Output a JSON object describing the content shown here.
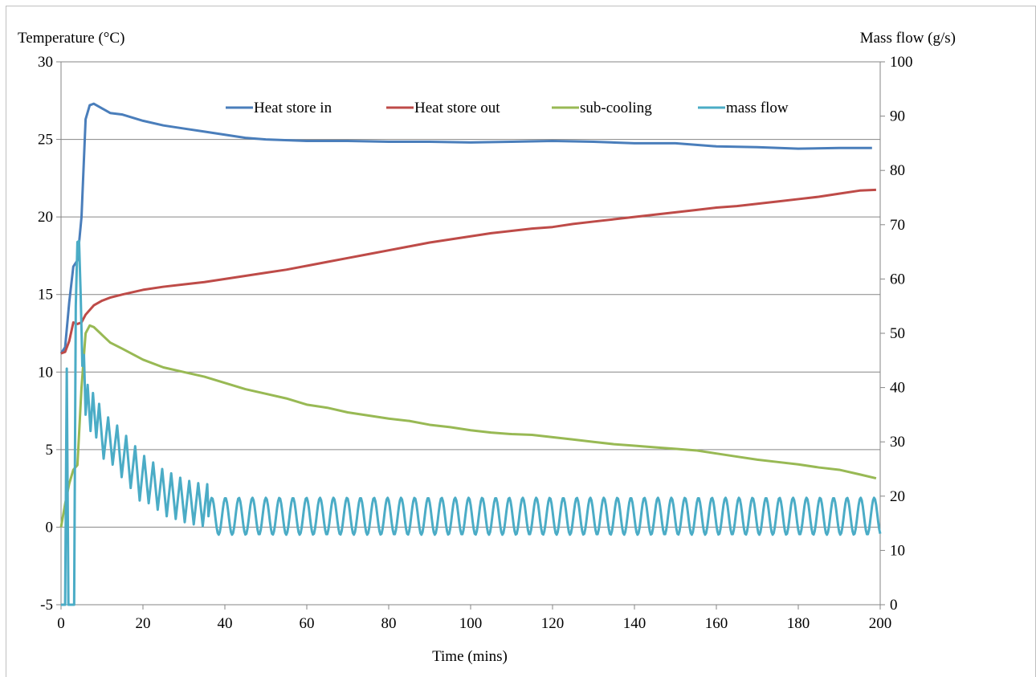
{
  "chart_data": {
    "type": "line",
    "xlabel": "Time (mins)",
    "ylabel_left": "Temperature (°C)",
    "ylabel_right": "Mass flow (g/s)",
    "xlim": [
      0,
      200
    ],
    "ylim_left": [
      -5,
      30
    ],
    "ylim_right": [
      0,
      100
    ],
    "x_ticks": [
      "0",
      "20",
      "40",
      "60",
      "80",
      "100",
      "120",
      "140",
      "160",
      "180",
      "200"
    ],
    "y_left_ticks": [
      "-5",
      "0",
      "5",
      "10",
      "15",
      "20",
      "25",
      "30"
    ],
    "y_right_ticks": [
      "0",
      "10",
      "20",
      "30",
      "40",
      "50",
      "60",
      "70",
      "80",
      "90",
      "100"
    ],
    "grid": "horizontal",
    "legend_position": "top-right",
    "series": [
      {
        "name": "Heat store in",
        "axis": "left",
        "color": "#4a7ebb",
        "points": [
          [
            0,
            11.2
          ],
          [
            1,
            11.6
          ],
          [
            2,
            14.5
          ],
          [
            3,
            16.8
          ],
          [
            4,
            17.2
          ],
          [
            5,
            20
          ],
          [
            6,
            26.3
          ],
          [
            7,
            27.2
          ],
          [
            8,
            27.3
          ],
          [
            10,
            27
          ],
          [
            12,
            26.7
          ],
          [
            15,
            26.6
          ],
          [
            20,
            26.2
          ],
          [
            25,
            25.9
          ],
          [
            30,
            25.7
          ],
          [
            35,
            25.5
          ],
          [
            40,
            25.3
          ],
          [
            45,
            25.1
          ],
          [
            50,
            25
          ],
          [
            60,
            24.9
          ],
          [
            70,
            24.9
          ],
          [
            80,
            24.85
          ],
          [
            90,
            24.85
          ],
          [
            100,
            24.8
          ],
          [
            110,
            24.85
          ],
          [
            120,
            24.9
          ],
          [
            130,
            24.85
          ],
          [
            140,
            24.75
          ],
          [
            150,
            24.75
          ],
          [
            160,
            24.55
          ],
          [
            170,
            24.5
          ],
          [
            180,
            24.4
          ],
          [
            190,
            24.45
          ],
          [
            198,
            24.45
          ]
        ]
      },
      {
        "name": "Heat store out",
        "axis": "left",
        "color": "#be4b48",
        "points": [
          [
            0,
            11.2
          ],
          [
            1,
            11.3
          ],
          [
            2,
            12
          ],
          [
            3,
            13.2
          ],
          [
            4,
            13.1
          ],
          [
            5,
            13.2
          ],
          [
            6,
            13.7
          ],
          [
            8,
            14.3
          ],
          [
            10,
            14.6
          ],
          [
            12,
            14.8
          ],
          [
            15,
            15
          ],
          [
            20,
            15.3
          ],
          [
            25,
            15.5
          ],
          [
            30,
            15.65
          ],
          [
            35,
            15.8
          ],
          [
            40,
            16
          ],
          [
            45,
            16.2
          ],
          [
            50,
            16.4
          ],
          [
            55,
            16.6
          ],
          [
            60,
            16.85
          ],
          [
            65,
            17.1
          ],
          [
            70,
            17.35
          ],
          [
            75,
            17.6
          ],
          [
            80,
            17.85
          ],
          [
            85,
            18.1
          ],
          [
            90,
            18.35
          ],
          [
            95,
            18.55
          ],
          [
            100,
            18.75
          ],
          [
            105,
            18.95
          ],
          [
            110,
            19.1
          ],
          [
            115,
            19.25
          ],
          [
            120,
            19.35
          ],
          [
            125,
            19.55
          ],
          [
            130,
            19.7
          ],
          [
            135,
            19.85
          ],
          [
            140,
            20
          ],
          [
            145,
            20.15
          ],
          [
            150,
            20.3
          ],
          [
            155,
            20.45
          ],
          [
            160,
            20.6
          ],
          [
            165,
            20.7
          ],
          [
            170,
            20.85
          ],
          [
            175,
            21
          ],
          [
            180,
            21.15
          ],
          [
            185,
            21.3
          ],
          [
            190,
            21.5
          ],
          [
            195,
            21.7
          ],
          [
            199,
            21.75
          ]
        ]
      },
      {
        "name": "sub-cooling",
        "axis": "left",
        "color": "#98b954",
        "points": [
          [
            0,
            0
          ],
          [
            1,
            1.5
          ],
          [
            2,
            2.8
          ],
          [
            3,
            3.7
          ],
          [
            4,
            4
          ],
          [
            5,
            9
          ],
          [
            6,
            12.5
          ],
          [
            7,
            13
          ],
          [
            8,
            12.9
          ],
          [
            10,
            12.4
          ],
          [
            12,
            11.9
          ],
          [
            15,
            11.5
          ],
          [
            20,
            10.8
          ],
          [
            25,
            10.3
          ],
          [
            30,
            10
          ],
          [
            35,
            9.7
          ],
          [
            40,
            9.3
          ],
          [
            45,
            8.9
          ],
          [
            50,
            8.6
          ],
          [
            55,
            8.3
          ],
          [
            60,
            7.9
          ],
          [
            65,
            7.7
          ],
          [
            70,
            7.4
          ],
          [
            75,
            7.2
          ],
          [
            80,
            7
          ],
          [
            85,
            6.85
          ],
          [
            90,
            6.6
          ],
          [
            95,
            6.45
          ],
          [
            100,
            6.25
          ],
          [
            105,
            6.1
          ],
          [
            110,
            6
          ],
          [
            115,
            5.95
          ],
          [
            120,
            5.8
          ],
          [
            125,
            5.65
          ],
          [
            130,
            5.5
          ],
          [
            135,
            5.35
          ],
          [
            140,
            5.25
          ],
          [
            145,
            5.15
          ],
          [
            150,
            5.05
          ],
          [
            155,
            4.95
          ],
          [
            160,
            4.75
          ],
          [
            165,
            4.55
          ],
          [
            170,
            4.35
          ],
          [
            175,
            4.2
          ],
          [
            180,
            4.05
          ],
          [
            185,
            3.85
          ],
          [
            190,
            3.7
          ],
          [
            195,
            3.4
          ],
          [
            199,
            3.15
          ]
        ]
      },
      {
        "name": "mass flow",
        "axis": "right",
        "color": "#4bacc6",
        "points": [
          [
            0,
            0
          ],
          [
            1,
            0
          ],
          [
            1.4,
            43.5
          ],
          [
            1.8,
            0
          ],
          [
            3.2,
            0
          ],
          [
            3.6,
            55
          ],
          [
            4,
            66.8
          ],
          [
            4.4,
            67
          ],
          [
            4.8,
            57
          ],
          [
            5.2,
            44
          ],
          [
            5.6,
            46
          ],
          [
            6,
            35
          ],
          [
            6.5,
            40.5
          ],
          [
            7.2,
            32
          ],
          [
            7.8,
            39
          ],
          [
            8.6,
            30.8
          ],
          [
            9.3,
            37
          ],
          [
            10.4,
            26.9
          ],
          [
            11.5,
            34.5
          ],
          [
            12.6,
            25.8
          ],
          [
            13.7,
            33
          ],
          [
            14.8,
            23.5
          ],
          [
            15.9,
            31.1
          ],
          [
            17,
            21.5
          ],
          [
            18.1,
            29.2
          ],
          [
            19.2,
            19.2
          ],
          [
            20.3,
            27.4
          ],
          [
            21.4,
            18.7
          ],
          [
            22.5,
            26.2
          ],
          [
            23.6,
            17.5
          ],
          [
            24.7,
            25
          ],
          [
            25.8,
            16.3
          ],
          [
            26.9,
            24.2
          ],
          [
            28,
            15.8
          ],
          [
            29.1,
            23.4
          ],
          [
            30.2,
            15.2
          ],
          [
            31.3,
            22.8
          ],
          [
            32.4,
            14.8
          ],
          [
            33.5,
            22.4
          ],
          [
            34.6,
            14.5
          ],
          [
            35.7,
            22.2
          ]
        ],
        "oscillation": {
          "x_start": 36,
          "x_end": 200,
          "period": 3.3,
          "center": 16.3,
          "amplitude": 3.4
        }
      }
    ]
  }
}
